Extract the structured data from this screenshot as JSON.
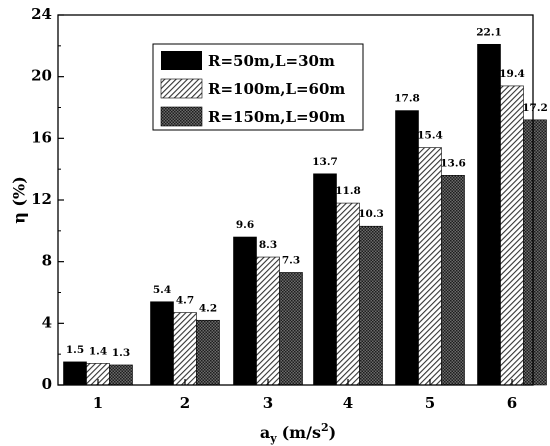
{
  "chart_data": {
    "type": "bar",
    "categories": [
      "1",
      "2",
      "3",
      "4",
      "5",
      "6"
    ],
    "series": [
      {
        "name": "R=50m,L=30m",
        "values": [
          1.5,
          5.4,
          9.6,
          13.7,
          17.8,
          22.1
        ],
        "fill": "solid-black"
      },
      {
        "name": "R=100m,L=60m",
        "values": [
          1.4,
          4.7,
          8.3,
          11.8,
          15.4,
          19.4
        ],
        "fill": "diagonal-hatch"
      },
      {
        "name": "R=150m,L=90m",
        "values": [
          1.3,
          4.2,
          7.3,
          10.3,
          13.6,
          17.2
        ],
        "fill": "crosshatch"
      }
    ],
    "xlabel_main": "a",
    "xlabel_sub": "y",
    "xlabel_unit": "(m/s",
    "xlabel_unit_sup": "2",
    "xlabel_close": ")",
    "ylabel": "η  (%)",
    "ylim": [
      0,
      24
    ],
    "yticks": [
      "0",
      "4",
      "8",
      "12",
      "16",
      "20",
      "24"
    ],
    "legend_position": "top-center",
    "grid": false
  }
}
